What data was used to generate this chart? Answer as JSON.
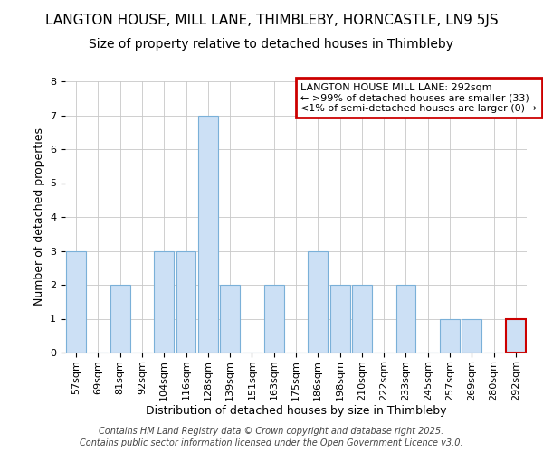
{
  "title": "LANGTON HOUSE, MILL LANE, THIMBLEBY, HORNCASTLE, LN9 5JS",
  "subtitle": "Size of property relative to detached houses in Thimbleby",
  "xlabel": "Distribution of detached houses by size in Thimbleby",
  "ylabel": "Number of detached properties",
  "categories": [
    "57sqm",
    "69sqm",
    "81sqm",
    "92sqm",
    "104sqm",
    "116sqm",
    "128sqm",
    "139sqm",
    "151sqm",
    "163sqm",
    "175sqm",
    "186sqm",
    "198sqm",
    "210sqm",
    "222sqm",
    "233sqm",
    "245sqm",
    "257sqm",
    "269sqm",
    "280sqm",
    "292sqm"
  ],
  "values": [
    3,
    0,
    2,
    0,
    3,
    3,
    7,
    2,
    0,
    2,
    0,
    3,
    2,
    2,
    0,
    2,
    0,
    1,
    1,
    0,
    1
  ],
  "bar_color": "#cce0f5",
  "bar_edge_color": "#7ab0d8",
  "highlight_index": 20,
  "highlight_bar_edge_color": "#cc0000",
  "annotation_box_text": "LANGTON HOUSE MILL LANE: 292sqm\n← >99% of detached houses are smaller (33)\n<1% of semi-detached houses are larger (0) →",
  "annotation_box_edge_color": "#cc0000",
  "ylim": [
    0,
    8
  ],
  "yticks": [
    0,
    1,
    2,
    3,
    4,
    5,
    6,
    7,
    8
  ],
  "footer_line1": "Contains HM Land Registry data © Crown copyright and database right 2025.",
  "footer_line2": "Contains public sector information licensed under the Open Government Licence v3.0.",
  "bg_color": "#ffffff",
  "grid_color": "#c8c8c8",
  "title_fontsize": 11,
  "subtitle_fontsize": 10,
  "axis_label_fontsize": 9,
  "tick_fontsize": 8,
  "annotation_fontsize": 8,
  "footer_fontsize": 7
}
